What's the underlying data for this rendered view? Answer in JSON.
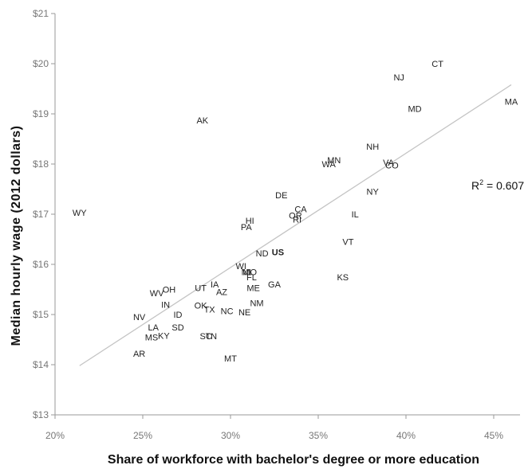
{
  "chart_data": {
    "type": "scatter",
    "title": "",
    "xlabel": "Share of workforce with bachelor's degree or more education",
    "ylabel": "Median hourly wage (2012 dollars)",
    "xlim": [
      20,
      46.5
    ],
    "ylim": [
      13,
      21
    ],
    "x_ticks": [
      20,
      25,
      30,
      35,
      40,
      45
    ],
    "x_tick_labels": [
      "20%",
      "25%",
      "30%",
      "35%",
      "40%",
      "45%"
    ],
    "y_ticks": [
      13,
      14,
      15,
      16,
      17,
      18,
      19,
      20,
      21
    ],
    "y_tick_labels": [
      "$13",
      "$14",
      "$15",
      "$16",
      "$17",
      "$18",
      "$19",
      "$20",
      "$21"
    ],
    "grid": false,
    "annotation": {
      "prefix": "R",
      "sup": "2",
      "rest": " = 0.607"
    },
    "trendline": {
      "x": [
        21.4,
        46.0
      ],
      "y": [
        13.98,
        19.58
      ]
    },
    "points": [
      {
        "label": "CT",
        "x": 41.8,
        "y": 20.0
      },
      {
        "label": "NJ",
        "x": 39.6,
        "y": 19.73
      },
      {
        "label": "MA",
        "x": 46.0,
        "y": 19.25
      },
      {
        "label": "MD",
        "x": 40.5,
        "y": 19.1
      },
      {
        "label": "AK",
        "x": 28.4,
        "y": 18.87
      },
      {
        "label": "NH",
        "x": 38.1,
        "y": 18.35
      },
      {
        "label": "MN",
        "x": 35.9,
        "y": 18.08
      },
      {
        "label": "WA",
        "x": 35.6,
        "y": 18.0
      },
      {
        "label": "VA",
        "x": 39.0,
        "y": 18.03
      },
      {
        "label": "CO",
        "x": 39.2,
        "y": 17.98
      },
      {
        "label": "NY",
        "x": 38.1,
        "y": 17.45
      },
      {
        "label": "DE",
        "x": 32.9,
        "y": 17.38
      },
      {
        "label": "CA",
        "x": 34.0,
        "y": 17.1
      },
      {
        "label": "OR",
        "x": 33.7,
        "y": 16.98
      },
      {
        "label": "RI",
        "x": 33.8,
        "y": 16.9
      },
      {
        "label": "IL",
        "x": 37.1,
        "y": 17.0
      },
      {
        "label": "HI",
        "x": 31.1,
        "y": 16.87
      },
      {
        "label": "PA",
        "x": 30.9,
        "y": 16.75
      },
      {
        "label": "WY",
        "x": 21.4,
        "y": 17.03
      },
      {
        "label": "VT",
        "x": 36.7,
        "y": 16.45
      },
      {
        "label": "ND",
        "x": 31.8,
        "y": 16.22
      },
      {
        "label": "US",
        "x": 32.7,
        "y": 16.25,
        "bold": true
      },
      {
        "label": "WI",
        "x": 30.6,
        "y": 15.97
      },
      {
        "label": "MI",
        "x": 30.9,
        "y": 15.85
      },
      {
        "label": "MO",
        "x": 31.1,
        "y": 15.85
      },
      {
        "label": "FL",
        "x": 31.2,
        "y": 15.75
      },
      {
        "label": "KS",
        "x": 36.4,
        "y": 15.75
      },
      {
        "label": "GA",
        "x": 32.5,
        "y": 15.6
      },
      {
        "label": "ME",
        "x": 31.3,
        "y": 15.53
      },
      {
        "label": "IA",
        "x": 29.1,
        "y": 15.6
      },
      {
        "label": "UT",
        "x": 28.3,
        "y": 15.53
      },
      {
        "label": "AZ",
        "x": 29.5,
        "y": 15.45
      },
      {
        "label": "OH",
        "x": 26.5,
        "y": 15.5
      },
      {
        "label": "WV",
        "x": 25.8,
        "y": 15.43
      },
      {
        "label": "NM",
        "x": 31.5,
        "y": 15.23
      },
      {
        "label": "IN",
        "x": 26.3,
        "y": 15.2
      },
      {
        "label": "OK",
        "x": 28.3,
        "y": 15.18
      },
      {
        "label": "TX",
        "x": 28.8,
        "y": 15.1
      },
      {
        "label": "NC",
        "x": 29.8,
        "y": 15.07
      },
      {
        "label": "NE",
        "x": 30.8,
        "y": 15.05
      },
      {
        "label": "ID",
        "x": 27.0,
        "y": 15.0
      },
      {
        "label": "NV",
        "x": 24.8,
        "y": 14.95
      },
      {
        "label": "LA",
        "x": 25.6,
        "y": 14.75
      },
      {
        "label": "SD",
        "x": 27.0,
        "y": 14.75
      },
      {
        "label": "MS",
        "x": 25.5,
        "y": 14.55
      },
      {
        "label": "KY",
        "x": 26.2,
        "y": 14.58
      },
      {
        "label": "SC",
        "x": 28.6,
        "y": 14.57
      },
      {
        "label": "TN",
        "x": 28.9,
        "y": 14.57
      },
      {
        "label": "AR",
        "x": 24.8,
        "y": 14.22
      },
      {
        "label": "MT",
        "x": 30.0,
        "y": 14.13
      }
    ]
  }
}
